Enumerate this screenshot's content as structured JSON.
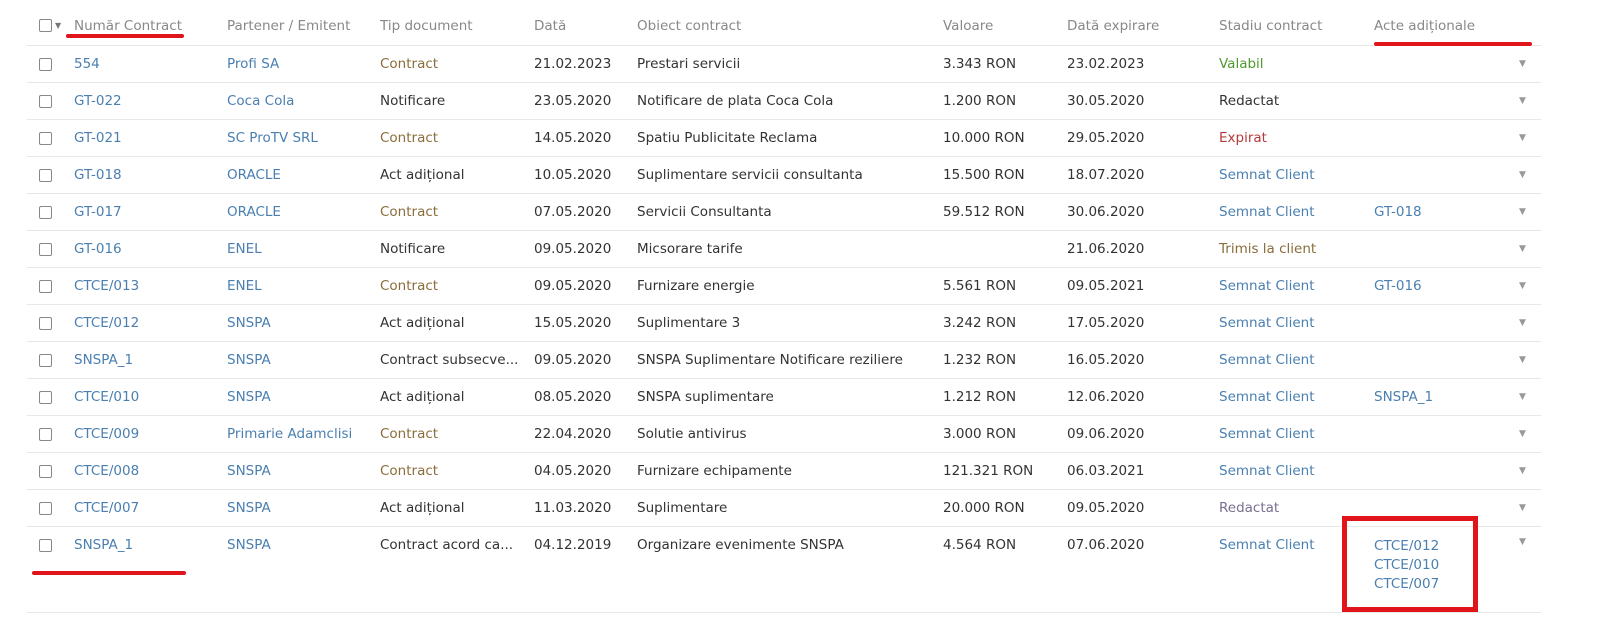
{
  "columns": [
    "Număr Contract",
    "Partener / Emitent",
    "Tip document",
    "Dată",
    "Obiect contract",
    "Valoare",
    "Dată expirare",
    "Stadiu contract",
    "Acte adiționale"
  ],
  "colors": {
    "link": "#4a7fb0",
    "contract": "#8a6d3b",
    "valabil": "#4f9a2f",
    "expirat": "#b53a3a",
    "trimis": "#8a6d3b",
    "redactat_alt": "#7a6f8f",
    "annotation": "#e0141a"
  },
  "rows": [
    {
      "numar": "554",
      "partener": "Profi SA",
      "tip": "Contract",
      "tip_style": "brown",
      "data": "21.02.2023",
      "obiect": "Prestari servicii",
      "valoare": "3.343 RON",
      "expirare": "23.02.2023",
      "stadiu": "Valabil",
      "stadiu_style": "green",
      "acte": []
    },
    {
      "numar": "GT-022",
      "partener": "Coca Cola",
      "tip": "Notificare",
      "tip_style": "dark",
      "data": "23.05.2020",
      "obiect": "Notificare de plata Coca Cola",
      "valoare": "1.200 RON",
      "expirare": "30.05.2020",
      "stadiu": "Redactat",
      "stadiu_style": "dark",
      "acte": []
    },
    {
      "numar": "GT-021",
      "partener": "SC ProTV SRL",
      "tip": "Contract",
      "tip_style": "brown",
      "data": "14.05.2020",
      "obiect": "Spatiu Publicitate Reclama",
      "valoare": "10.000 RON",
      "expirare": "29.05.2020",
      "stadiu": "Expirat",
      "stadiu_style": "red",
      "acte": []
    },
    {
      "numar": "GT-018",
      "partener": "ORACLE",
      "tip": "Act adițional",
      "tip_style": "dark",
      "data": "10.05.2020",
      "obiect": "Suplimentare servicii consultanta",
      "valoare": "15.500 RON",
      "expirare": "18.07.2020",
      "stadiu": "Semnat Client",
      "stadiu_style": "link",
      "acte": []
    },
    {
      "numar": "GT-017",
      "partener": "ORACLE",
      "tip": "Contract",
      "tip_style": "brown",
      "data": "07.05.2020",
      "obiect": "Servicii Consultanta",
      "valoare": "59.512 RON",
      "expirare": "30.06.2020",
      "stadiu": "Semnat Client",
      "stadiu_style": "link",
      "acte": [
        "GT-018"
      ]
    },
    {
      "numar": "GT-016",
      "partener": "ENEL",
      "tip": "Notificare",
      "tip_style": "dark",
      "data": "09.05.2020",
      "obiect": "Micsorare tarife",
      "valoare": "",
      "expirare": "21.06.2020",
      "stadiu": "Trimis la client",
      "stadiu_style": "brown",
      "acte": []
    },
    {
      "numar": "CTCE/013",
      "partener": "ENEL",
      "tip": "Contract",
      "tip_style": "brown",
      "data": "09.05.2020",
      "obiect": "Furnizare energie",
      "valoare": "5.561 RON",
      "expirare": "09.05.2021",
      "stadiu": "Semnat Client",
      "stadiu_style": "link",
      "acte": [
        "GT-016"
      ]
    },
    {
      "numar": "CTCE/012",
      "partener": "SNSPA",
      "tip": "Act adițional",
      "tip_style": "dark",
      "data": "15.05.2020",
      "obiect": "Suplimentare 3",
      "valoare": "3.242 RON",
      "expirare": "17.05.2020",
      "stadiu": "Semnat Client",
      "stadiu_style": "link",
      "acte": []
    },
    {
      "numar": "SNSPA_1",
      "partener": "SNSPA",
      "tip": "Contract subsecve...",
      "tip_style": "dark",
      "data": "09.05.2020",
      "obiect": "SNSPA Suplimentare Notificare reziliere",
      "valoare": "1.232 RON",
      "expirare": "16.05.2020",
      "stadiu": "Semnat Client",
      "stadiu_style": "link",
      "acte": []
    },
    {
      "numar": "CTCE/010",
      "partener": "SNSPA",
      "tip": "Act adițional",
      "tip_style": "dark",
      "data": "08.05.2020",
      "obiect": "SNSPA suplimentare",
      "valoare": "1.212 RON",
      "expirare": "12.06.2020",
      "stadiu": "Semnat Client",
      "stadiu_style": "link",
      "acte": [
        "SNSPA_1"
      ]
    },
    {
      "numar": "CTCE/009",
      "partener": "Primarie Adamclisi",
      "tip": "Contract",
      "tip_style": "brown",
      "data": "22.04.2020",
      "obiect": "Solutie antivirus",
      "valoare": "3.000 RON",
      "expirare": "09.06.2020",
      "stadiu": "Semnat Client",
      "stadiu_style": "link",
      "acte": []
    },
    {
      "numar": "CTCE/008",
      "partener": "SNSPA",
      "tip": "Contract",
      "tip_style": "brown",
      "data": "04.05.2020",
      "obiect": "Furnizare echipamente",
      "valoare": "121.321 RON",
      "expirare": "06.03.2021",
      "stadiu": "Semnat Client",
      "stadiu_style": "link",
      "acte": []
    },
    {
      "numar": "CTCE/007",
      "partener": "SNSPA",
      "tip": "Act adițional",
      "tip_style": "dark",
      "data": "11.03.2020",
      "obiect": "Suplimentare",
      "valoare": "20.000 RON",
      "expirare": "09.05.2020",
      "stadiu": "Redactat",
      "stadiu_style": "purple",
      "acte": []
    },
    {
      "numar": "SNSPA_1",
      "partener": "SNSPA",
      "tip": "Contract acord ca...",
      "tip_style": "dark",
      "data": "04.12.2019",
      "obiect": "Organizare evenimente SNSPA",
      "valoare": "4.564 RON",
      "expirare": "07.06.2020",
      "stadiu": "Semnat Client",
      "stadiu_style": "link",
      "acte": [
        "CTCE/012",
        "CTCE/010",
        "CTCE/007"
      ]
    }
  ]
}
